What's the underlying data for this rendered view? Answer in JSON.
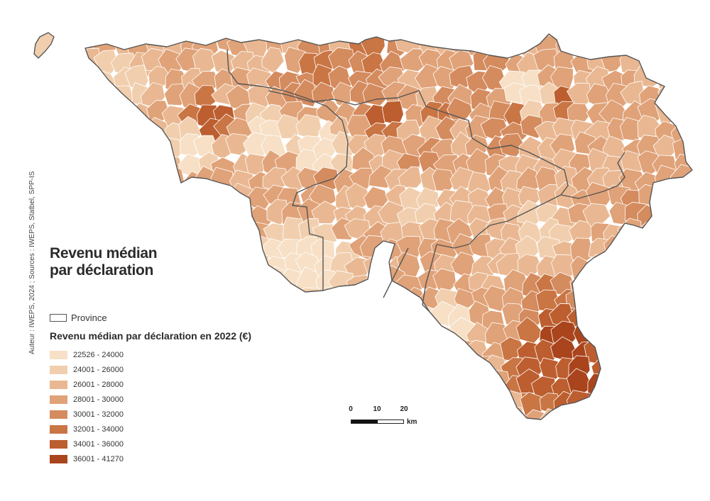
{
  "title": {
    "line1": "Revenu médian",
    "line2": "par déclaration"
  },
  "credit": "Auteur : IWEPS, 2024 ; Sources : IWEPS, Statbel, SPP-IS",
  "province_legend": {
    "label": "Province",
    "icon": "province-outline-icon"
  },
  "legend": {
    "title": "Revenu médian par déclaration en 2022 (€)",
    "classes": [
      {
        "label": "22526 - 24000",
        "color": "#f7e0c6"
      },
      {
        "label": "24001 - 26000",
        "color": "#f1cfae"
      },
      {
        "label": "26001 - 28000",
        "color": "#e9b892"
      },
      {
        "label": "28001 - 30000",
        "color": "#e0a278"
      },
      {
        "label": "30001 - 32000",
        "color": "#d48b5e"
      },
      {
        "label": "32001 - 34000",
        "color": "#c97544"
      },
      {
        "label": "34001 - 36000",
        "color": "#bc5e2f"
      },
      {
        "label": "36001 - 41270",
        "color": "#a9441c"
      }
    ]
  },
  "scale_bar": {
    "ticks": [
      "0",
      "10",
      "20"
    ],
    "unit": "km"
  },
  "colors": {
    "province_border": "#555555",
    "municipality_border": "#ffffff"
  }
}
